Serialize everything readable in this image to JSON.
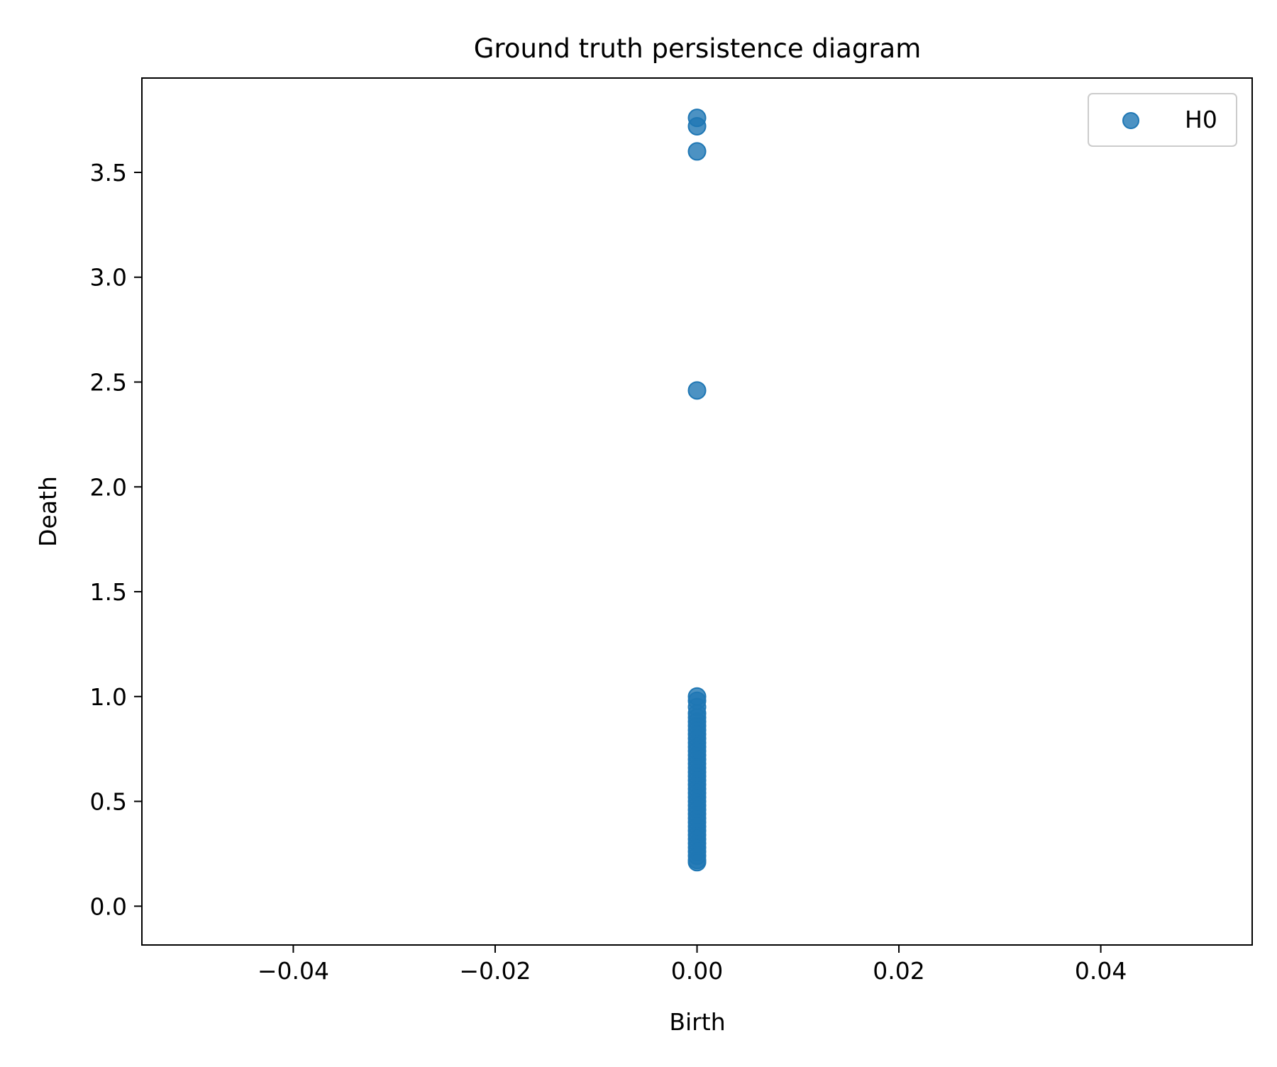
{
  "chart_data": {
    "type": "scatter",
    "title": "Ground truth persistence diagram",
    "xlabel": "Birth",
    "ylabel": "Death",
    "xlim": [
      -0.055,
      0.055
    ],
    "ylim": [
      -0.185,
      3.95
    ],
    "xticks": [
      -0.04,
      -0.02,
      0.0,
      0.02,
      0.04
    ],
    "xtick_labels": [
      "−0.04",
      "−0.02",
      "0.00",
      "0.02",
      "0.04"
    ],
    "yticks": [
      0.0,
      0.5,
      1.0,
      1.5,
      2.0,
      2.5,
      3.0,
      3.5
    ],
    "ytick_labels": [
      "0.0",
      "0.5",
      "1.0",
      "1.5",
      "2.0",
      "2.5",
      "3.0",
      "3.5"
    ],
    "grid": false,
    "legend": {
      "position": "top-right",
      "entries": [
        "H0"
      ]
    },
    "series": [
      {
        "name": "H0",
        "color": "#1f77b4",
        "points": [
          {
            "x": 0,
            "y": 3.76
          },
          {
            "x": 0,
            "y": 3.72
          },
          {
            "x": 0,
            "y": 3.6
          },
          {
            "x": 0,
            "y": 2.46
          },
          {
            "x": 0,
            "y": 1.0
          },
          {
            "x": 0,
            "y": 0.98
          },
          {
            "x": 0,
            "y": 0.95
          },
          {
            "x": 0,
            "y": 0.92
          },
          {
            "x": 0,
            "y": 0.9
          },
          {
            "x": 0,
            "y": 0.88
          },
          {
            "x": 0,
            "y": 0.86
          },
          {
            "x": 0,
            "y": 0.84
          },
          {
            "x": 0,
            "y": 0.82
          },
          {
            "x": 0,
            "y": 0.8
          },
          {
            "x": 0,
            "y": 0.78
          },
          {
            "x": 0,
            "y": 0.76
          },
          {
            "x": 0,
            "y": 0.74
          },
          {
            "x": 0,
            "y": 0.72
          },
          {
            "x": 0,
            "y": 0.7
          },
          {
            "x": 0,
            "y": 0.68
          },
          {
            "x": 0,
            "y": 0.66
          },
          {
            "x": 0,
            "y": 0.64
          },
          {
            "x": 0,
            "y": 0.62
          },
          {
            "x": 0,
            "y": 0.6
          },
          {
            "x": 0,
            "y": 0.58
          },
          {
            "x": 0,
            "y": 0.56
          },
          {
            "x": 0,
            "y": 0.54
          },
          {
            "x": 0,
            "y": 0.52
          },
          {
            "x": 0,
            "y": 0.5
          },
          {
            "x": 0,
            "y": 0.48
          },
          {
            "x": 0,
            "y": 0.46
          },
          {
            "x": 0,
            "y": 0.44
          },
          {
            "x": 0,
            "y": 0.42
          },
          {
            "x": 0,
            "y": 0.4
          },
          {
            "x": 0,
            "y": 0.38
          },
          {
            "x": 0,
            "y": 0.36
          },
          {
            "x": 0,
            "y": 0.34
          },
          {
            "x": 0,
            "y": 0.32
          },
          {
            "x": 0,
            "y": 0.3
          },
          {
            "x": 0,
            "y": 0.28
          },
          {
            "x": 0,
            "y": 0.26
          },
          {
            "x": 0,
            "y": 0.24
          },
          {
            "x": 0,
            "y": 0.22
          },
          {
            "x": 0,
            "y": 0.21
          }
        ]
      }
    ]
  }
}
